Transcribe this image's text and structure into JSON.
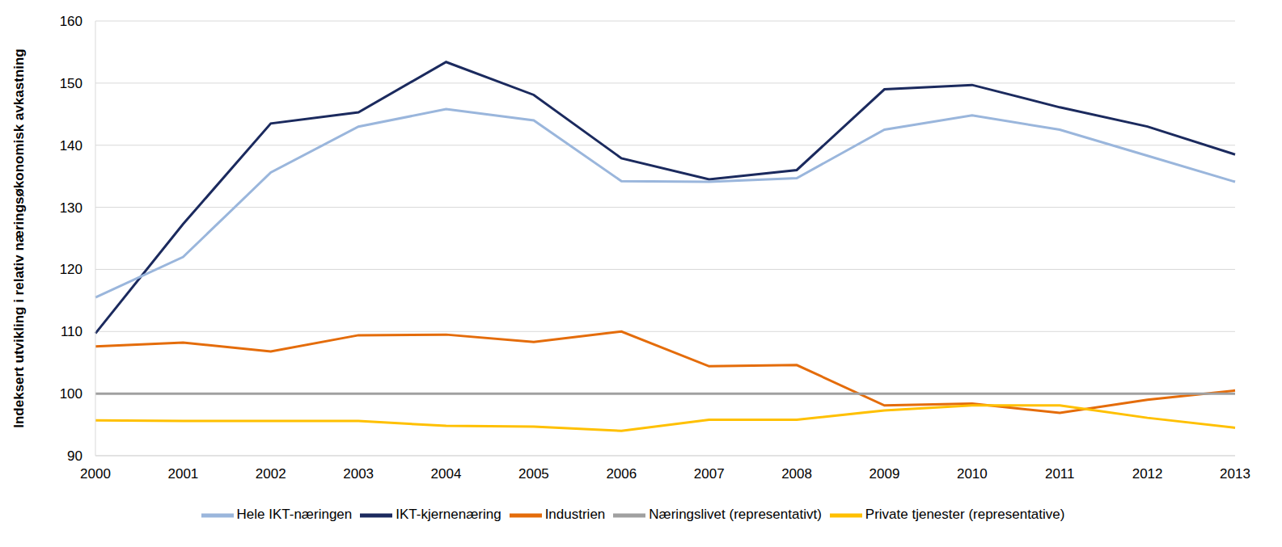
{
  "chart_data": {
    "type": "line",
    "y_label": "Indeksert utvikling i relativ næringsøkonomisk avkastning",
    "categories": [
      "2000",
      "2001",
      "2002",
      "2003",
      "2004",
      "2005",
      "2006",
      "2007",
      "2008",
      "2009",
      "2010",
      "2011",
      "2012",
      "2013"
    ],
    "series": [
      {
        "name": "IKT-kjernenæring",
        "color": "#1b2a5e",
        "values": [
          109.7,
          127.3,
          143.5,
          145.3,
          153.4,
          148.1,
          137.9,
          134.5,
          136.0,
          149.0,
          149.7,
          146.1,
          143.0,
          138.5
        ]
      },
      {
        "name": "Hele IKT-næringen",
        "color": "#9ab6dc",
        "values": [
          115.5,
          122.0,
          135.6,
          143.0,
          145.8,
          144.0,
          134.2,
          134.1,
          134.7,
          142.5,
          144.8,
          142.5,
          138.3,
          134.1
        ]
      },
      {
        "name": "Industrien",
        "color": "#e46c0a",
        "values": [
          107.6,
          108.2,
          106.8,
          109.4,
          109.5,
          108.3,
          110.0,
          104.4,
          104.6,
          98.1,
          98.4,
          96.9,
          99.0,
          100.5
        ]
      },
      {
        "name": "Private tjenester (representative)",
        "color": "#ffc000",
        "values": [
          95.7,
          95.6,
          95.6,
          95.6,
          94.8,
          94.7,
          94.0,
          95.8,
          95.8,
          97.3,
          98.1,
          98.1,
          96.1,
          94.5
        ]
      },
      {
        "name": "Næringslivet (representativt)",
        "color": "#a0a0a0",
        "values": [
          100,
          100,
          100,
          100,
          100,
          100,
          100,
          100,
          100,
          100,
          100,
          100,
          100,
          100
        ]
      }
    ],
    "ylim": [
      90,
      160
    ],
    "yticks": [
      90,
      100,
      110,
      120,
      130,
      140,
      150,
      160
    ],
    "grid": true,
    "legend": "bottom"
  }
}
